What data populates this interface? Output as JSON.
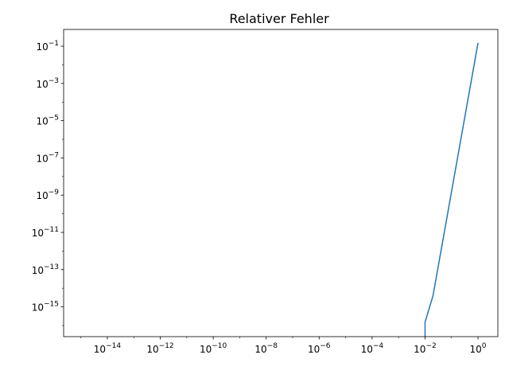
{
  "chart_data": {
    "type": "line",
    "title": "Relativer Fehler",
    "xscale": "log",
    "yscale": "log",
    "xlim_exp": [
      -15.65,
      0.75
    ],
    "ylim_exp": [
      -16.6,
      -0.1
    ],
    "xticks": [
      {
        "exp": -14,
        "label": "-14"
      },
      {
        "exp": -12,
        "label": "-12"
      },
      {
        "exp": -10,
        "label": "-10"
      },
      {
        "exp": -8,
        "label": "-8"
      },
      {
        "exp": -6,
        "label": "-6"
      },
      {
        "exp": -4,
        "label": "-4"
      },
      {
        "exp": -2,
        "label": "-2"
      },
      {
        "exp": 0,
        "label": "0"
      }
    ],
    "yticks": [
      {
        "exp": -15,
        "label": "-15"
      },
      {
        "exp": -13,
        "label": "-13"
      },
      {
        "exp": -11,
        "label": "-11"
      },
      {
        "exp": -9,
        "label": "-9"
      },
      {
        "exp": -7,
        "label": "-7"
      },
      {
        "exp": -5,
        "label": "-5"
      },
      {
        "exp": -3,
        "label": "-3"
      },
      {
        "exp": -1,
        "label": "-1"
      }
    ],
    "series": [
      {
        "name": "Relativer Fehler",
        "color": "#1f77b4",
        "x": [
          0.01,
          0.01,
          0.02,
          1.0
        ],
        "y": [
          2e-17,
          1.5e-16,
          4e-15,
          0.15
        ]
      }
    ],
    "xlabel": "",
    "ylabel": "",
    "grid": false
  }
}
